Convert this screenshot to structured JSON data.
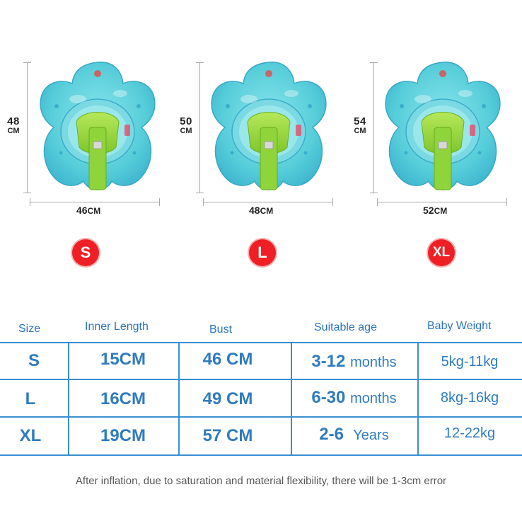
{
  "colors": {
    "accent_blue": "#2f7bbf",
    "badge_red": "#ee1f25",
    "float_body": "#5fd1dc",
    "float_seat": "#96d63a"
  },
  "products": [
    {
      "size": "S",
      "height": "48",
      "width": "46",
      "unit": "CM"
    },
    {
      "size": "L",
      "height": "50",
      "width": "48",
      "unit": "CM"
    },
    {
      "size": "XL",
      "height": "54",
      "width": "52",
      "unit": "CM"
    }
  ],
  "product_icon": "swim-float-icon",
  "table": {
    "headers": [
      "Size",
      "Inner Length",
      "Bust",
      "Suitable age",
      "Baby Weight"
    ],
    "rows": [
      {
        "size": "S",
        "inner": "15CM",
        "bust": "46 CM",
        "age_num": "3-12",
        "age_unit": "months",
        "weight": "5kg-11kg"
      },
      {
        "size": "L",
        "inner": "16CM",
        "bust": "49 CM",
        "age_num": "6-30",
        "age_unit": "months",
        "weight": "8kg-16kg"
      },
      {
        "size": "XL",
        "inner": "19CM",
        "bust": "57 CM",
        "age_num": "2-6",
        "age_unit": "Years",
        "weight": "12-22kg"
      }
    ]
  },
  "footnote": "After inflation, due to saturation and material flexibility, there will be 1-3cm error"
}
